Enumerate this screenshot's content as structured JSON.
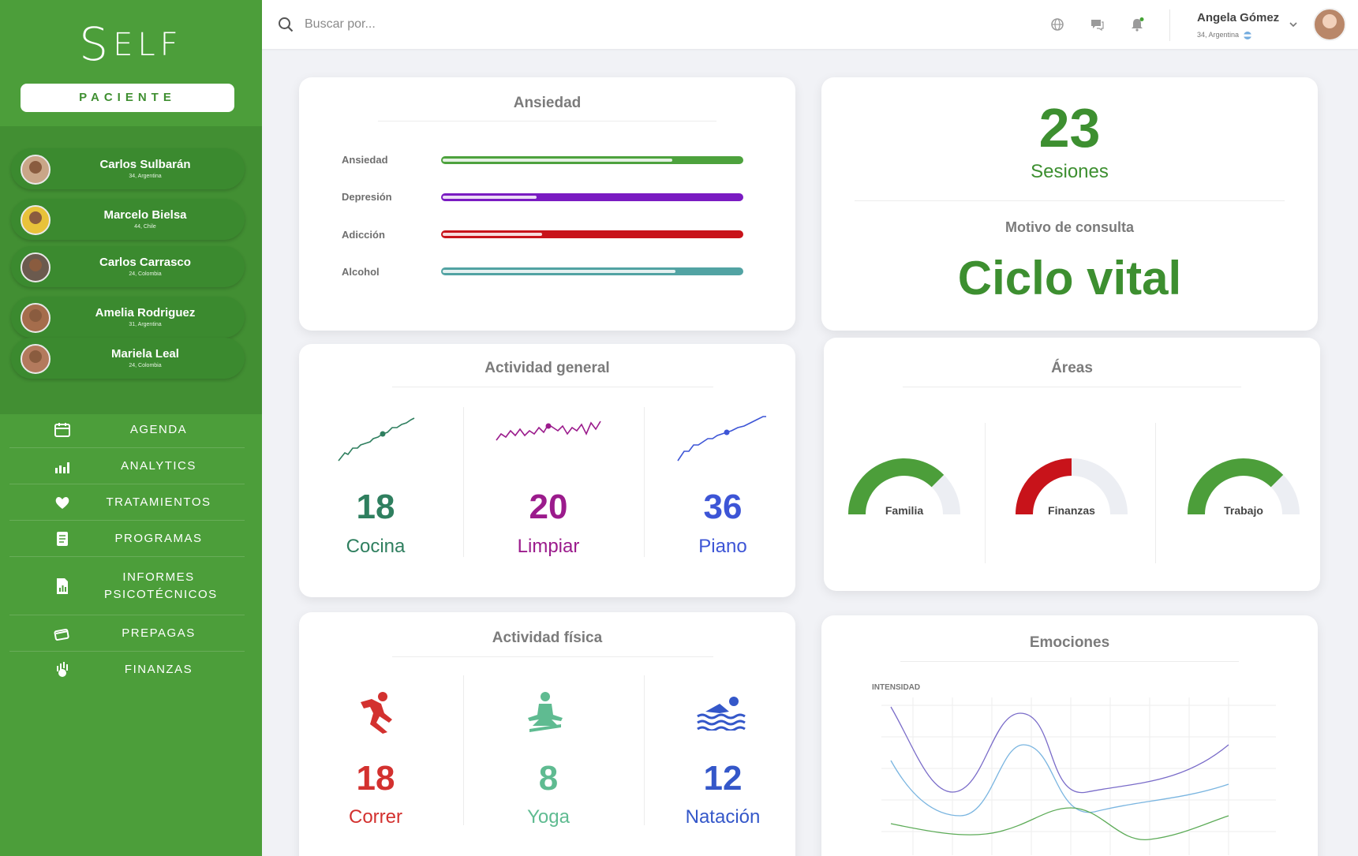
{
  "brand": {
    "logo_first": "S",
    "logo_rest": "ELF"
  },
  "role_button": "PACIENTE",
  "patients": [
    {
      "name": "Carlos Sulbarán",
      "sub": "34, Argentina"
    },
    {
      "name": "Marcelo Bielsa",
      "sub": "44, Chile"
    },
    {
      "name": "Carlos Carrasco",
      "sub": "24, Colombia"
    },
    {
      "name": "Amelia Rodriguez",
      "sub": "31, Argentina"
    },
    {
      "name": "Mariela Leal",
      "sub": "24, Colombia"
    }
  ],
  "menu": [
    {
      "label": "AGENDA",
      "icon": "calendar-icon"
    },
    {
      "label": "ANALYTICS",
      "icon": "analytics-icon"
    },
    {
      "label": "TRATAMIENTOS",
      "icon": "heart-hands-icon"
    },
    {
      "label": "PROGRAMAS",
      "icon": "document-icon"
    },
    {
      "label": "INFORMES PSICOTÉCNICOS",
      "icon": "report-icon"
    },
    {
      "label": "PREPAGAS",
      "icon": "card-icon"
    },
    {
      "label": "FINANZAS",
      "icon": "money-icon"
    }
  ],
  "search": {
    "placeholder": "Buscar por..."
  },
  "user": {
    "name": "Angela Gómez",
    "sub": "34, Argentina"
  },
  "ansiedad": {
    "title": "Ansiedad",
    "bars": [
      {
        "label": "Ansiedad",
        "color": "#4da23d",
        "value": 0.76
      },
      {
        "label": "Depresión",
        "color": "#7a1bc2",
        "value": 0.31
      },
      {
        "label": "Adicción",
        "color": "#c8131a",
        "value": 0.33
      },
      {
        "label": "Alcohol",
        "color": "#52a3a3",
        "value": 0.77
      }
    ]
  },
  "sesiones": {
    "count": "23",
    "label": "Sesiones",
    "motivo_label": "Motivo de consulta",
    "motivo_value": "Ciclo vital"
  },
  "actividad_general": {
    "title": "Actividad general",
    "items": [
      {
        "value": "18",
        "label": "Cocina",
        "color": "#2f7f5f"
      },
      {
        "value": "20",
        "label": "Limpiar",
        "color": "#9b1b8c"
      },
      {
        "value": "36",
        "label": "Piano",
        "color": "#3d55d6"
      }
    ]
  },
  "areas": {
    "title": "Áreas",
    "gauges": [
      {
        "label": "Familia",
        "color": "#4c9e3a",
        "value": 0.75
      },
      {
        "label": "Finanzas",
        "color": "#c8131a",
        "value": 0.5
      },
      {
        "label": "Trabajo",
        "color": "#4c9e3a",
        "value": 0.75
      }
    ]
  },
  "actividad_fisica": {
    "title": "Actividad física",
    "items": [
      {
        "value": "18",
        "label": "Correr",
        "color": "#d3312f",
        "icon": "running-icon"
      },
      {
        "value": "8",
        "label": "Yoga",
        "color": "#5fbb91",
        "icon": "yoga-icon"
      },
      {
        "value": "12",
        "label": "Natación",
        "color": "#3457c9",
        "icon": "swimming-icon"
      }
    ]
  },
  "emociones": {
    "title": "Emociones",
    "axis_label": "INTENSIDAD"
  }
}
